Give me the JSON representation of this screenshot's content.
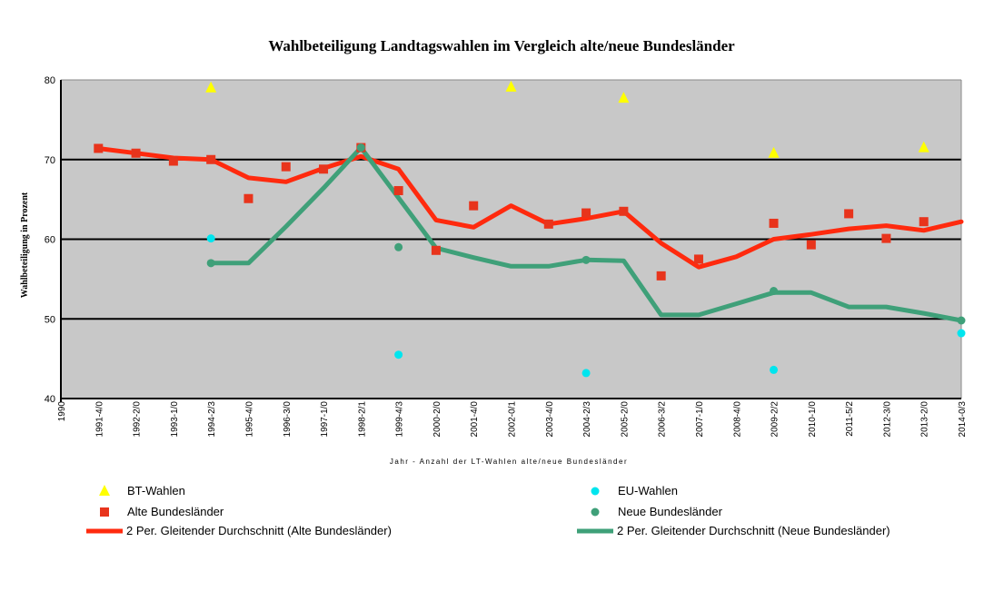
{
  "chart_data": {
    "type": "line",
    "title": "Wahlbeteiligung Landtagswahlen im Vergleich alte/neue Bundesländer",
    "ylabel": "Wahlbeteiligung in Prozent",
    "xlabel": "Jahr - Anzahl der LT-Wahlen alte/neue Bundesländer",
    "ylim": [
      40,
      80
    ],
    "yticks": [
      40,
      50,
      60,
      70,
      80
    ],
    "grid": "horizontal",
    "legend_position": "bottom",
    "x_origin_label": "1990",
    "categories": [
      "1991-4/0",
      "1992-2/0",
      "1993-1/0",
      "1994-2/3",
      "1995-4/0",
      "1996-3/0",
      "1997-1/0",
      "1998-2/1",
      "1999-4/3",
      "2000-2/0",
      "2001-4/0",
      "2002-0/1",
      "2003-4/0",
      "2004-2/3",
      "2005-2/0",
      "2006-3/2",
      "2007-1/0",
      "2008-4/0",
      "2009-2/2",
      "2010-1/0",
      "2011-5/2",
      "2012-3/0",
      "2013-2/0",
      "2014-0/3"
    ],
    "series": [
      {
        "name": "BT-Wahlen",
        "kind": "marker",
        "marker": "triangle",
        "color": "#ffff00",
        "values": [
          null,
          null,
          null,
          79.0,
          null,
          null,
          null,
          null,
          null,
          null,
          null,
          79.1,
          null,
          null,
          77.7,
          null,
          null,
          null,
          70.8,
          null,
          null,
          null,
          71.5,
          null
        ]
      },
      {
        "name": "EU-Wahlen",
        "kind": "marker",
        "marker": "dot",
        "color": "#00e5ee",
        "values": [
          null,
          null,
          null,
          60.1,
          null,
          null,
          null,
          null,
          45.5,
          null,
          null,
          null,
          null,
          43.2,
          null,
          null,
          null,
          null,
          43.6,
          null,
          null,
          null,
          null,
          48.2
        ]
      },
      {
        "name": "Alte Bundesländer",
        "kind": "marker",
        "marker": "square",
        "color": "#e8341c",
        "values": [
          71.4,
          70.8,
          69.8,
          70.0,
          65.1,
          69.1,
          68.8,
          71.5,
          66.1,
          58.6,
          64.2,
          null,
          61.9,
          63.3,
          63.5,
          55.4,
          57.5,
          null,
          62.0,
          59.3,
          63.2,
          60.1,
          62.2,
          null
        ]
      },
      {
        "name": "Neue Bundesländer",
        "kind": "marker",
        "marker": "dot",
        "color": "#3fa079",
        "values": [
          null,
          null,
          null,
          57.0,
          null,
          null,
          null,
          71.5,
          59.0,
          null,
          null,
          null,
          null,
          57.4,
          null,
          null,
          null,
          null,
          53.5,
          null,
          null,
          null,
          null,
          49.8
        ]
      },
      {
        "name": "2 Per. Gleitender Durchschnitt (Alte Bundesländer)",
        "kind": "line",
        "color": "#ff2a0e",
        "values": [
          71.4,
          70.8,
          70.2,
          70.0,
          67.7,
          67.2,
          68.9,
          70.4,
          68.8,
          62.4,
          61.5,
          64.2,
          61.9,
          62.6,
          63.5,
          59.5,
          56.5,
          57.8,
          60.0,
          60.6,
          61.3,
          61.7,
          61.1,
          62.2
        ]
      },
      {
        "name": "2 Per. Gleitender Durchschnitt (Neue Bundesländer)",
        "kind": "line",
        "color": "#3fa079",
        "values": [
          null,
          null,
          null,
          57.0,
          57.0,
          61.6,
          66.4,
          71.5,
          65.2,
          58.9,
          57.7,
          56.6,
          56.6,
          57.4,
          57.3,
          50.5,
          50.5,
          51.9,
          53.3,
          53.3,
          51.5,
          51.5,
          50.7,
          49.8
        ]
      }
    ]
  }
}
